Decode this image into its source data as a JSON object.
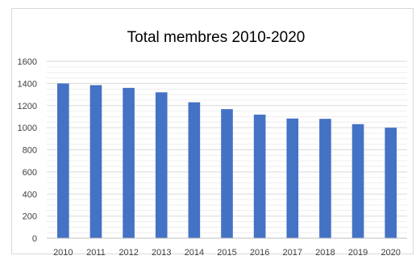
{
  "chart_data": {
    "type": "bar",
    "title": "Total membres 2010-2020",
    "xlabel": "",
    "ylabel": "",
    "categories": [
      "2010",
      "2011",
      "2012",
      "2013",
      "2014",
      "2015",
      "2016",
      "2017",
      "2018",
      "2019",
      "2020"
    ],
    "values": [
      1400,
      1385,
      1360,
      1320,
      1230,
      1168,
      1118,
      1083,
      1080,
      1032,
      1000
    ],
    "ylim": [
      0,
      1600
    ],
    "yticks": [
      "0",
      "200",
      "400",
      "600",
      "800",
      "1000",
      "1200",
      "1400",
      "1600"
    ],
    "bar_color": "#4472c4",
    "grid": true,
    "legend": "none"
  }
}
